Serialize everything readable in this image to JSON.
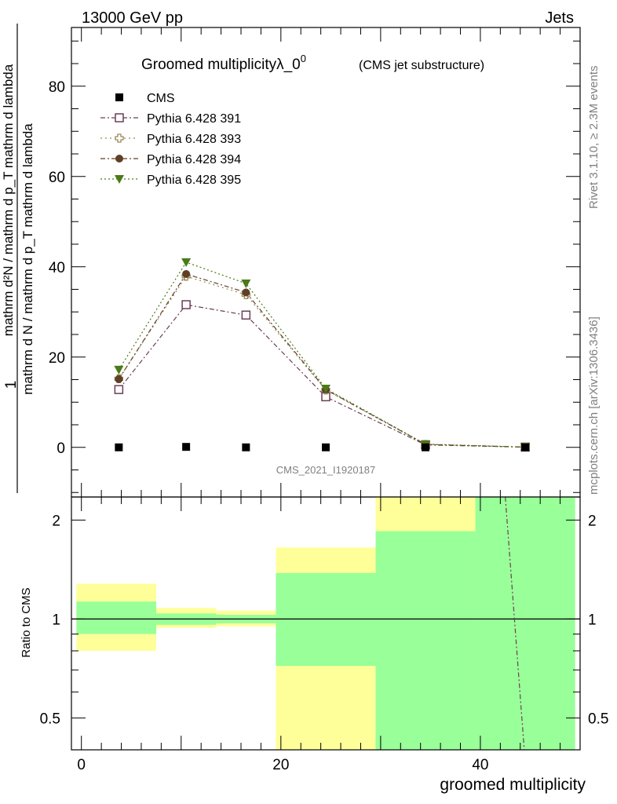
{
  "header": {
    "left": "13000 GeV pp",
    "right": "Jets"
  },
  "side_labels": {
    "rivet": "Rivet 3.1.10, ≥ 2.3M events",
    "mcplots": "mcplots.cern.ch [arXiv:1306.3436]"
  },
  "chart_data": [
    {
      "type": "line",
      "title": "Groomed multiplicityλ_0⁰",
      "title_main": "Groomed multiplicityλ_0",
      "title_sup": "0",
      "subtitle": "(CMS jet substructure)",
      "watermark": "CMS_2021_I1920187",
      "ylabel_numerator": "1",
      "ylabel_denominator": "mathrm d N / mathrm d p_T mathrm d lambda",
      "ylabel_right": "mathrm d²N / mathrm d p_T mathrm d lambda",
      "xlim": [
        -1,
        50
      ],
      "ylim": [
        -11,
        93
      ],
      "yticks": [
        0,
        20,
        40,
        60,
        80
      ],
      "legend_position": "top-left",
      "x": [
        3.75,
        10.5,
        16.5,
        24.5,
        34.5,
        44.5
      ],
      "series": [
        {
          "name": "CMS",
          "color": "#000000",
          "marker": "square-filled",
          "values": [
            0.0,
            0.1,
            0.0,
            0.0,
            0.0,
            0.0
          ]
        },
        {
          "name": "Pythia 6.428 391",
          "color": "#6b3f55",
          "marker": "square-open",
          "values": [
            12.8,
            31.6,
            29.3,
            11.2,
            0.55,
            0.05
          ]
        },
        {
          "name": "Pythia 6.428 393",
          "color": "#9a8a55",
          "marker": "cross-open",
          "values": [
            15.2,
            37.9,
            33.8,
            12.7,
            0.65,
            0.06
          ]
        },
        {
          "name": "Pythia 6.428 394",
          "color": "#5e4028",
          "marker": "circle-filled",
          "values": [
            15.1,
            38.4,
            34.3,
            12.8,
            0.65,
            0.06
          ]
        },
        {
          "name": "Pythia 6.428 395",
          "color": "#4b7a18",
          "marker": "triangle-down-filled",
          "values": [
            17.2,
            41.0,
            36.3,
            13.0,
            0.7,
            0.06
          ]
        }
      ]
    },
    {
      "type": "area",
      "ylabel": "Ratio to CMS",
      "xlabel": "groomed multiplicity",
      "xlim": [
        -1,
        50
      ],
      "ylim": [
        0.4,
        2.35
      ],
      "log_scale": true,
      "xticks": [
        0,
        20,
        40
      ],
      "yticks": [
        0.5,
        1,
        2
      ],
      "reference_line": 1,
      "bins": [
        {
          "lo": -0.5,
          "hi": 7.5,
          "green": [
            0.9,
            1.13
          ],
          "yellow": [
            0.8,
            1.28
          ]
        },
        {
          "lo": 7.5,
          "hi": 13.5,
          "green": [
            0.96,
            1.04
          ],
          "yellow": [
            0.94,
            1.08
          ]
        },
        {
          "lo": 13.5,
          "hi": 19.5,
          "green": [
            0.97,
            1.03
          ],
          "yellow": [
            0.95,
            1.06
          ]
        },
        {
          "lo": 19.5,
          "hi": 29.5,
          "green": [
            0.72,
            1.38
          ],
          "yellow": [
            0.4,
            1.65
          ]
        },
        {
          "lo": 29.5,
          "hi": 39.5,
          "green": [
            0.4,
            1.85
          ],
          "yellow": [
            0.4,
            2.35
          ]
        },
        {
          "lo": 39.5,
          "hi": 49.5,
          "green": [
            0.4,
            2.35
          ],
          "yellow": [
            0.4,
            2.35
          ]
        }
      ],
      "ratio_line": {
        "color": "#6b3f55",
        "points": [
          [
            42.5,
            2.35
          ],
          [
            44.4,
            0.4
          ]
        ]
      }
    }
  ]
}
